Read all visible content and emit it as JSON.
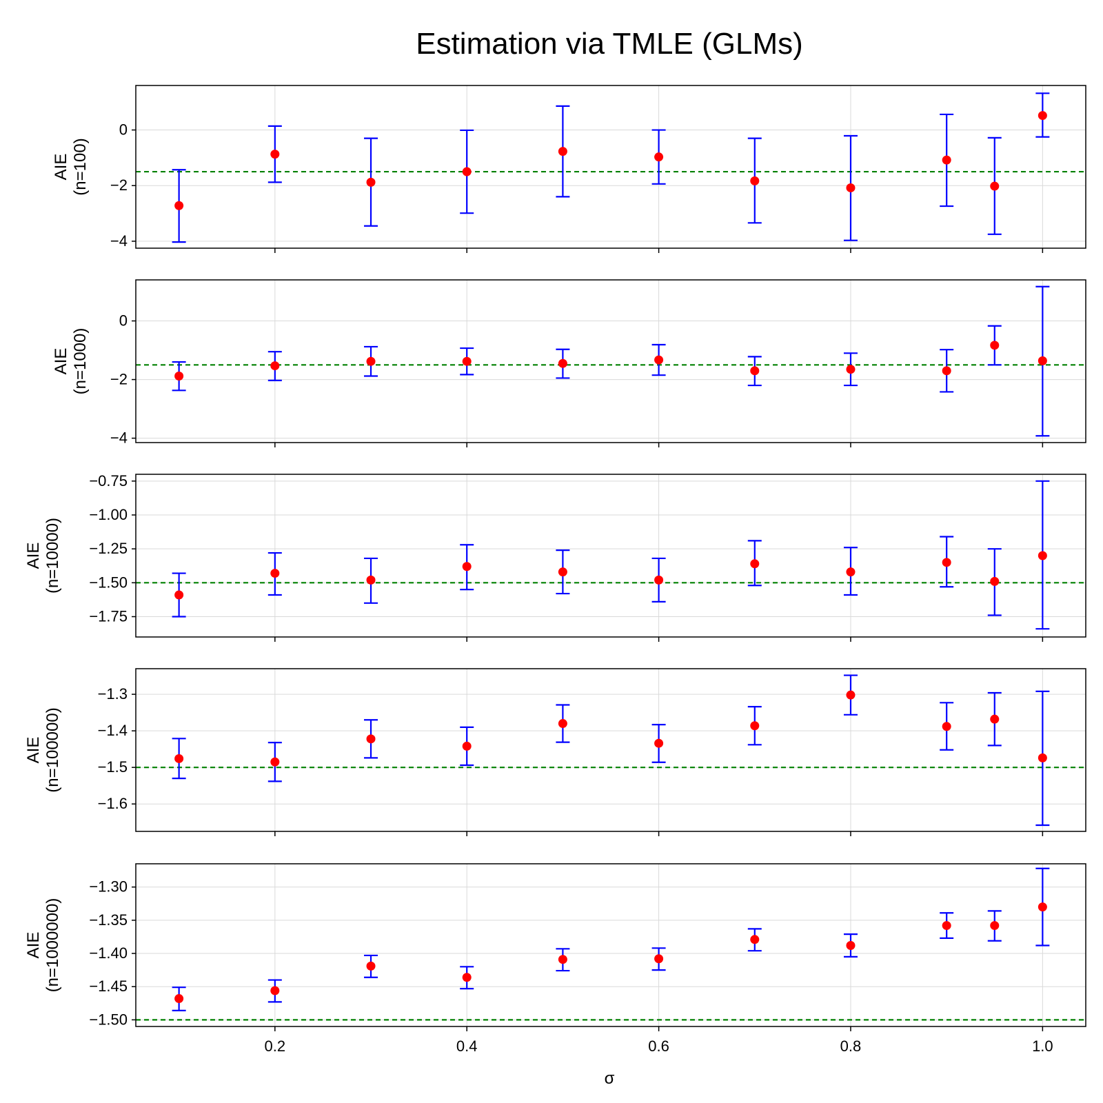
{
  "chart_data": {
    "type": "scatter",
    "title": "Estimation via TMLE (GLMs)",
    "xlabel": "σ",
    "x_tick_labels": [
      "0.2",
      "0.4",
      "0.6",
      "0.8",
      "1.0"
    ],
    "xlim": [
      0.055,
      1.045
    ],
    "x": [
      0.1,
      0.2,
      0.3,
      0.4,
      0.5,
      0.6,
      0.7,
      0.8,
      0.9,
      0.95,
      1.0
    ],
    "reference_value": -1.5,
    "grid": true,
    "colors": {
      "points": "#ff0000",
      "error_bars": "#0000ff",
      "reference_line": "#008000"
    },
    "panels": [
      {
        "ylabel_top": "AIE",
        "ylabel_bottom": "(n=100)",
        "ylim": [
          -4.25,
          1.6
        ],
        "y_ticks": [
          0,
          -2,
          -4
        ],
        "y_tick_labels": [
          "0",
          "−2",
          "−4"
        ],
        "estimates": [
          -2.72,
          -0.87,
          -1.88,
          -1.5,
          -0.77,
          -0.97,
          -1.83,
          -2.08,
          -1.08,
          -2.02,
          0.52
        ],
        "lower": [
          -4.03,
          -1.88,
          -3.45,
          -2.99,
          -2.4,
          -1.94,
          -3.34,
          -3.97,
          -2.74,
          -3.75,
          -0.25
        ],
        "upper": [
          -1.43,
          0.14,
          -0.3,
          -0.01,
          0.86,
          0.0,
          -0.3,
          -0.21,
          0.56,
          -0.28,
          1.32
        ]
      },
      {
        "ylabel_top": "AIE",
        "ylabel_bottom": "(n=1000)",
        "ylim": [
          -4.15,
          1.4
        ],
        "y_ticks": [
          0,
          -2,
          -4
        ],
        "y_tick_labels": [
          "0",
          "−2",
          "−4"
        ],
        "estimates": [
          -1.88,
          -1.53,
          -1.38,
          -1.38,
          -1.45,
          -1.33,
          -1.7,
          -1.65,
          -1.7,
          -0.83,
          -1.36
        ],
        "lower": [
          -2.37,
          -2.03,
          -1.88,
          -1.83,
          -1.95,
          -1.85,
          -2.2,
          -2.2,
          -2.42,
          -1.5,
          -3.92
        ],
        "upper": [
          -1.4,
          -1.05,
          -0.88,
          -0.93,
          -0.97,
          -0.81,
          -1.22,
          -1.1,
          -0.98,
          -0.17,
          1.17
        ]
      },
      {
        "ylabel_top": "AIE",
        "ylabel_bottom": "(n=10000)",
        "ylim": [
          -1.9,
          -0.7
        ],
        "y_ticks": [
          -0.75,
          -1.0,
          -1.25,
          -1.5,
          -1.75
        ],
        "y_tick_labels": [
          "−0.75",
          "−1.00",
          "−1.25",
          "−1.50",
          "−1.75"
        ],
        "estimates": [
          -1.59,
          -1.43,
          -1.48,
          -1.38,
          -1.42,
          -1.48,
          -1.36,
          -1.42,
          -1.35,
          -1.49,
          -1.3
        ],
        "lower": [
          -1.75,
          -1.59,
          -1.65,
          -1.55,
          -1.58,
          -1.64,
          -1.52,
          -1.59,
          -1.53,
          -1.74,
          -1.84
        ],
        "upper": [
          -1.43,
          -1.28,
          -1.32,
          -1.22,
          -1.26,
          -1.32,
          -1.19,
          -1.24,
          -1.16,
          -1.25,
          -0.75
        ]
      },
      {
        "ylabel_top": "AIE",
        "ylabel_bottom": "(n=100000)",
        "ylim": [
          -1.675,
          -1.23
        ],
        "y_ticks": [
          -1.3,
          -1.4,
          -1.5,
          -1.6
        ],
        "y_tick_labels": [
          "−1.3",
          "−1.4",
          "−1.5",
          "−1.6"
        ],
        "estimates": [
          -1.476,
          -1.485,
          -1.422,
          -1.442,
          -1.38,
          -1.434,
          -1.386,
          -1.302,
          -1.388,
          -1.368,
          -1.474
        ],
        "lower": [
          -1.53,
          -1.538,
          -1.474,
          -1.494,
          -1.431,
          -1.486,
          -1.438,
          -1.356,
          -1.452,
          -1.44,
          -1.658
        ],
        "upper": [
          -1.421,
          -1.432,
          -1.37,
          -1.39,
          -1.329,
          -1.383,
          -1.334,
          -1.248,
          -1.323,
          -1.296,
          -1.292
        ]
      },
      {
        "ylabel_top": "AIE",
        "ylabel_bottom": "(n=1000000)",
        "ylim": [
          -1.51,
          -1.265
        ],
        "y_ticks": [
          -1.3,
          -1.35,
          -1.4,
          -1.45,
          -1.5
        ],
        "y_tick_labels": [
          "−1.30",
          "−1.35",
          "−1.40",
          "−1.45",
          "−1.50"
        ],
        "estimates": [
          -1.468,
          -1.456,
          -1.419,
          -1.436,
          -1.409,
          -1.408,
          -1.379,
          -1.388,
          -1.358,
          -1.358,
          -1.33
        ],
        "lower": [
          -1.486,
          -1.473,
          -1.436,
          -1.453,
          -1.426,
          -1.425,
          -1.396,
          -1.405,
          -1.377,
          -1.381,
          -1.388
        ],
        "upper": [
          -1.451,
          -1.44,
          -1.403,
          -1.42,
          -1.393,
          -1.392,
          -1.363,
          -1.371,
          -1.339,
          -1.336,
          -1.272
        ]
      }
    ]
  }
}
